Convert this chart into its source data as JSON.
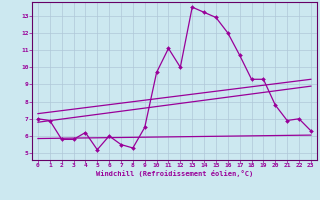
{
  "xlabel": "Windchill (Refroidissement éolien,°C)",
  "bg_color": "#cce8f0",
  "grid_color": "#b0c8d8",
  "line_color": "#990099",
  "spine_color": "#660066",
  "xlim": [
    -0.5,
    23.5
  ],
  "ylim": [
    4.6,
    13.8
  ],
  "xticks": [
    0,
    1,
    2,
    3,
    4,
    5,
    6,
    7,
    8,
    9,
    10,
    11,
    12,
    13,
    14,
    15,
    16,
    17,
    18,
    19,
    20,
    21,
    22,
    23
  ],
  "yticks": [
    5,
    6,
    7,
    8,
    9,
    10,
    11,
    12,
    13
  ],
  "curve1_x": [
    0,
    1,
    2,
    3,
    4,
    5,
    6,
    7,
    8,
    9,
    10,
    11,
    12,
    13,
    14,
    15,
    16,
    17,
    18,
    19,
    20,
    21,
    22,
    23
  ],
  "curve1_y": [
    7.0,
    6.9,
    5.8,
    5.8,
    6.2,
    5.2,
    6.0,
    5.5,
    5.3,
    6.5,
    9.7,
    11.1,
    10.0,
    13.5,
    13.2,
    12.9,
    12.0,
    10.7,
    9.3,
    9.3,
    7.8,
    6.9,
    7.0,
    6.3
  ],
  "curve2_x": [
    0,
    23
  ],
  "curve2_y": [
    7.3,
    9.3
  ],
  "curve3_x": [
    0,
    23
  ],
  "curve3_y": [
    6.8,
    8.9
  ],
  "curve4_x": [
    0,
    23
  ],
  "curve4_y": [
    5.85,
    6.05
  ]
}
